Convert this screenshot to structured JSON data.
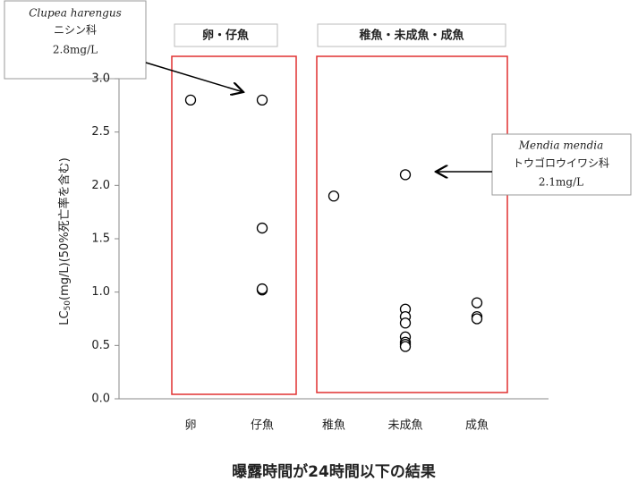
{
  "chart_data": {
    "type": "scatter",
    "title": "曝露時間が24時間以下の結果",
    "y_label": {
      "main": "LC",
      "sub": "50",
      "rest": "(mg/L)(50%死亡率を含む)"
    },
    "categories": [
      "卵",
      "仔魚",
      "稚魚",
      "未成魚",
      "成魚"
    ],
    "values": [
      [
        2.8
      ],
      [
        2.8,
        1.6,
        1.02,
        1.03
      ],
      [
        1.9
      ],
      [
        2.1,
        0.84,
        0.77,
        0.71,
        0.58,
        0.53,
        0.51,
        0.49
      ],
      [
        0.9,
        0.77,
        0.75
      ]
    ],
    "ylim": [
      0,
      3
    ],
    "yticks": [
      {
        "value": 0,
        "label": "0.0"
      },
      0.5,
      {
        "value": 1,
        "label": "1.0"
      },
      1.5,
      {
        "value": 2,
        "label": "2.0"
      },
      2.5,
      {
        "value": 3,
        "label": "3.0"
      }
    ],
    "groups": [
      "卵・仔魚",
      "稚魚・未成魚・成魚"
    ],
    "annotations": [
      {
        "species": "Clupea harengus",
        "family": "ニシン科",
        "value": "2.8mg/L"
      },
      {
        "species": "Mendia mendia",
        "family": "トウゴロウイワシ科",
        "value": "2.1mg/L"
      }
    ]
  }
}
